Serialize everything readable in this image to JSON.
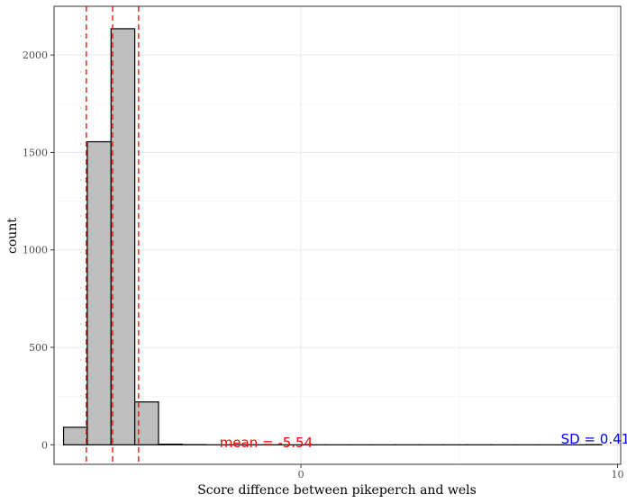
{
  "chart_data": {
    "type": "bar",
    "subtype": "histogram",
    "xlabel": "Score diffence between pikeperch and wels",
    "ylabel": "count",
    "xlim": [
      -7.8,
      10.1
    ],
    "ylim": [
      -100,
      2250
    ],
    "x_ticks": [
      0,
      10
    ],
    "x_minor_ticks": [
      -5,
      5
    ],
    "y_ticks": [
      0,
      500,
      1000,
      1500,
      2000
    ],
    "y_minor_ticks": [
      250,
      750,
      1250,
      1750,
      2250
    ],
    "bin_width": 0.75,
    "bins": [
      {
        "start": -7.5,
        "end": -6.75,
        "count": 90
      },
      {
        "start": -6.75,
        "end": -6.0,
        "count": 1555
      },
      {
        "start": -6.0,
        "end": -5.25,
        "count": 2135
      },
      {
        "start": -5.25,
        "end": -4.5,
        "count": 220
      },
      {
        "start": -4.5,
        "end": -3.75,
        "count": 3
      },
      {
        "start": -3.75,
        "end": -3.0,
        "count": 1
      },
      {
        "start": -3.0,
        "end": -2.25,
        "count": 0
      },
      {
        "start": -2.25,
        "end": -1.5,
        "count": 0
      },
      {
        "start": -1.5,
        "end": -0.75,
        "count": 0
      },
      {
        "start": -0.75,
        "end": 0.0,
        "count": 0
      },
      {
        "start": 0.0,
        "end": 0.75,
        "count": 0
      },
      {
        "start": 0.75,
        "end": 1.5,
        "count": 0
      },
      {
        "start": 1.5,
        "end": 2.25,
        "count": 0
      },
      {
        "start": 2.25,
        "end": 3.0,
        "count": 0
      },
      {
        "start": 3.0,
        "end": 3.75,
        "count": 0
      },
      {
        "start": 3.75,
        "end": 4.5,
        "count": 0
      },
      {
        "start": 4.5,
        "end": 5.25,
        "count": 0
      },
      {
        "start": 5.25,
        "end": 6.0,
        "count": 0
      },
      {
        "start": 6.0,
        "end": 6.75,
        "count": 0
      },
      {
        "start": 6.75,
        "end": 7.5,
        "count": 0
      },
      {
        "start": 7.5,
        "end": 8.25,
        "count": 0
      },
      {
        "start": 8.25,
        "end": 9.0,
        "count": 0
      },
      {
        "start": 9.0,
        "end": 9.5,
        "count": 1
      }
    ],
    "vlines": [
      {
        "x": -6.78,
        "color": "#ff0000",
        "style": "dashed"
      },
      {
        "x": -5.95,
        "color": "#ff0000",
        "style": "dashed"
      },
      {
        "x": -5.13,
        "color": "#ff0000",
        "style": "dashed"
      }
    ],
    "annotations": [
      {
        "text": "mean = -5.54",
        "x": -1.1,
        "y": 10,
        "color": "#ff0000",
        "anchor": "middle"
      },
      {
        "text": "SD = 0.41",
        "x": 9.3,
        "y": 30,
        "color": "#0000ff",
        "anchor": "middle"
      }
    ],
    "bar_fill": "#bebebe",
    "bar_stroke": "#000000",
    "grid": true,
    "legend": "none"
  }
}
